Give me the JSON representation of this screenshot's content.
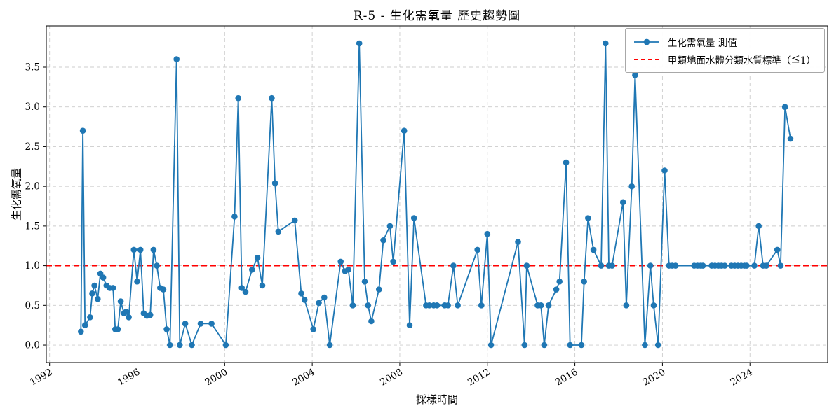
{
  "chart_data": {
    "type": "line",
    "title": "R-5 - 生化需氧量 歷史趨勢圖",
    "xlabel": "採樣時間",
    "ylabel": "生化需氧量",
    "xlim": [
      1991.85,
      2027.55
    ],
    "ylim": [
      -0.22,
      4.02
    ],
    "x_ticks": [
      1992,
      1996,
      2000,
      2004,
      2008,
      2012,
      2016,
      2020,
      2024
    ],
    "x_tick_labels": [
      "1992",
      "1996",
      "2000",
      "2004",
      "2008",
      "2012",
      "2016",
      "2020",
      "2024"
    ],
    "y_ticks": [
      0.0,
      0.5,
      1.0,
      1.5,
      2.0,
      2.5,
      3.0,
      3.5
    ],
    "y_tick_labels": [
      "0.0",
      "0.5",
      "1.0",
      "1.5",
      "2.0",
      "2.5",
      "3.0",
      "3.5"
    ],
    "grid": true,
    "grid_color": "#cccccc",
    "legend_position": "upper right",
    "series": [
      {
        "name": "生化需氧量 測值",
        "color": "#1f77b4",
        "style": "line-markers",
        "x": [
          1993.43,
          1993.52,
          1993.62,
          1993.85,
          1993.95,
          1994.05,
          1994.2,
          1994.32,
          1994.45,
          1994.6,
          1994.75,
          1994.9,
          1995.0,
          1995.12,
          1995.25,
          1995.4,
          1995.5,
          1995.62,
          1995.85,
          1996.0,
          1996.15,
          1996.3,
          1996.45,
          1996.6,
          1996.75,
          1996.9,
          1997.05,
          1997.2,
          1997.35,
          1997.5,
          1997.8,
          1997.95,
          1998.2,
          1998.5,
          1998.9,
          1999.4,
          2000.05,
          2000.45,
          2000.62,
          2000.78,
          2000.95,
          2001.25,
          2001.5,
          2001.72,
          2002.15,
          2002.3,
          2002.45,
          2003.2,
          2003.5,
          2003.65,
          2004.05,
          2004.3,
          2004.55,
          2004.8,
          2005.3,
          2005.5,
          2005.65,
          2005.85,
          2006.15,
          2006.4,
          2006.55,
          2006.7,
          2007.05,
          2007.25,
          2007.55,
          2007.7,
          2008.2,
          2008.45,
          2008.65,
          2009.2,
          2009.35,
          2009.55,
          2009.7,
          2010.05,
          2010.2,
          2010.45,
          2010.65,
          2011.55,
          2011.73,
          2012.0,
          2012.17,
          2013.4,
          2013.7,
          2013.8,
          2014.3,
          2014.45,
          2014.6,
          2014.8,
          2015.15,
          2015.3,
          2015.6,
          2015.78,
          2016.3,
          2016.42,
          2016.6,
          2016.85,
          2017.2,
          2017.4,
          2017.55,
          2017.7,
          2018.2,
          2018.35,
          2018.6,
          2018.75,
          2019.2,
          2019.45,
          2019.6,
          2019.8,
          2020.1,
          2020.3,
          2020.45,
          2020.6,
          2021.45,
          2021.6,
          2021.75,
          2021.85,
          2022.25,
          2022.4,
          2022.55,
          2022.7,
          2022.85,
          2023.15,
          2023.3,
          2023.45,
          2023.6,
          2023.75,
          2023.85,
          2024.2,
          2024.4,
          2024.6,
          2024.75,
          2025.25,
          2025.4,
          2025.6,
          2025.85
        ],
        "y": [
          0.17,
          2.7,
          0.25,
          0.35,
          0.65,
          0.75,
          0.58,
          0.9,
          0.85,
          0.75,
          0.72,
          0.72,
          0.2,
          0.2,
          0.55,
          0.4,
          0.42,
          0.35,
          1.2,
          0.8,
          1.2,
          0.4,
          0.37,
          0.38,
          1.2,
          1.0,
          0.72,
          0.7,
          0.2,
          0.0,
          3.6,
          0.0,
          0.27,
          0.0,
          0.27,
          0.27,
          0.0,
          1.62,
          3.11,
          0.72,
          0.67,
          0.95,
          1.1,
          0.75,
          3.11,
          2.04,
          1.43,
          1.57,
          0.65,
          0.57,
          0.2,
          0.53,
          0.6,
          0.0,
          1.05,
          0.93,
          0.95,
          0.5,
          3.8,
          0.8,
          0.5,
          0.3,
          0.7,
          1.32,
          1.5,
          1.05,
          2.7,
          0.25,
          1.6,
          0.5,
          0.5,
          0.5,
          0.5,
          0.5,
          0.5,
          1.0,
          0.5,
          1.2,
          0.5,
          1.4,
          0.0,
          1.3,
          0.0,
          1.0,
          0.5,
          0.5,
          0.0,
          0.5,
          0.7,
          0.8,
          2.3,
          0.0,
          0.0,
          0.8,
          1.6,
          1.2,
          1.0,
          3.8,
          1.0,
          1.0,
          1.8,
          0.5,
          2.0,
          3.4,
          0.0,
          1.0,
          0.5,
          0.0,
          2.2,
          1.0,
          1.0,
          1.0,
          1.0,
          1.0,
          1.0,
          1.0,
          1.0,
          1.0,
          1.0,
          1.0,
          1.0,
          1.0,
          1.0,
          1.0,
          1.0,
          1.0,
          1.0,
          1.0,
          1.5,
          1.0,
          1.0,
          1.2,
          1.0,
          3.0,
          2.6
        ]
      },
      {
        "name": "甲類地面水體分類水質標準（≦1）",
        "color": "#ff0000",
        "style": "dashed-horizontal",
        "value": 1.0
      }
    ]
  }
}
